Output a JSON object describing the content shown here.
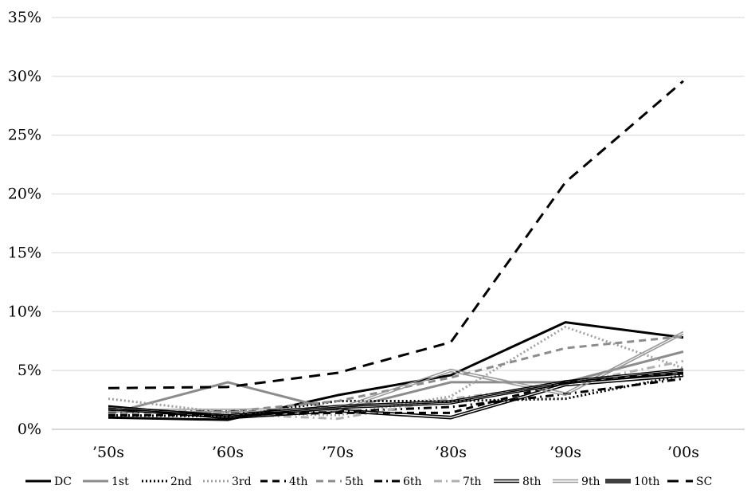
{
  "chart_data": {
    "type": "line",
    "categories": [
      "’50s",
      "’60s",
      "’70s",
      "’80s",
      "’90s",
      "’00s"
    ],
    "y_ticks": [
      "0%",
      "5%",
      "10%",
      "15%",
      "20%",
      "25%",
      "30%",
      "35%"
    ],
    "ylim": [
      0,
      35
    ],
    "grid": true,
    "legend_position": "bottom",
    "series": [
      {
        "name": "DC",
        "values": [
          1.0,
          0.8,
          2.9,
          4.6,
          9.1,
          7.8
        ],
        "color": "#000000",
        "style": "solid"
      },
      {
        "name": "1st",
        "values": [
          1.3,
          4.0,
          1.6,
          4.0,
          4.0,
          6.6
        ],
        "color": "#8c8c8c",
        "style": "solid"
      },
      {
        "name": "2nd",
        "values": [
          1.2,
          1.1,
          2.4,
          2.4,
          2.6,
          4.6
        ],
        "color": "#000000",
        "style": "dotted"
      },
      {
        "name": "3rd",
        "values": [
          2.6,
          1.4,
          1.2,
          2.8,
          8.7,
          5.2
        ],
        "color": "#a0a0a0",
        "style": "dotted"
      },
      {
        "name": "4th",
        "values": [
          1.2,
          1.2,
          1.4,
          1.4,
          4.0,
          4.8
        ],
        "color": "#000000",
        "style": "dashed"
      },
      {
        "name": "5th",
        "values": [
          1.4,
          1.5,
          2.4,
          4.4,
          6.9,
          7.9
        ],
        "color": "#8c8c8c",
        "style": "dashed"
      },
      {
        "name": "6th",
        "values": [
          1.5,
          1.5,
          1.5,
          1.9,
          3.0,
          4.3
        ],
        "color": "#000000",
        "style": "dashdot"
      },
      {
        "name": "7th",
        "values": [
          1.8,
          1.3,
          0.9,
          2.6,
          3.8,
          5.8
        ],
        "color": "#b0b0b0",
        "style": "dashdot"
      },
      {
        "name": "8th",
        "values": [
          1.9,
          1.0,
          1.6,
          1.0,
          3.8,
          4.6
        ],
        "color": "#000000",
        "style": "double"
      },
      {
        "name": "9th",
        "values": [
          1.6,
          1.6,
          1.7,
          5.0,
          3.0,
          8.2
        ],
        "color": "#9a9a9a",
        "style": "double"
      },
      {
        "name": "10th",
        "values": [
          1.8,
          1.1,
          1.9,
          2.3,
          4.0,
          5.0
        ],
        "color": "#000000",
        "style": "triple"
      },
      {
        "name": "SC",
        "values": [
          3.5,
          3.6,
          4.8,
          7.4,
          21.0,
          29.6
        ],
        "color": "#000000",
        "style": "longdash"
      }
    ]
  }
}
